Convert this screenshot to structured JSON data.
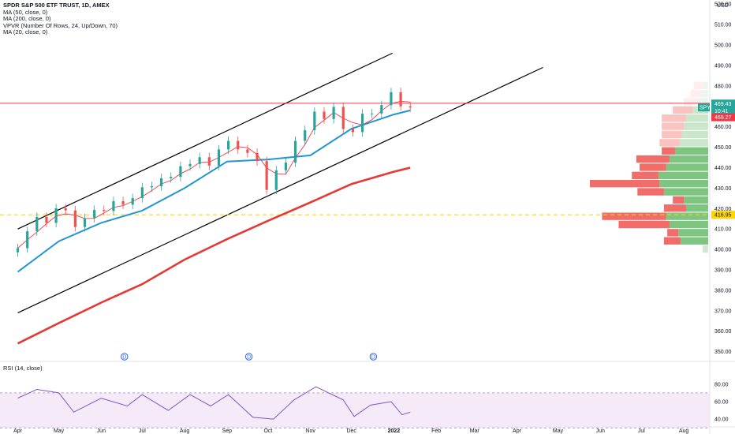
{
  "legend": {
    "title": "SPDR S&P 500 ETF TRUST, 1D, AMEX",
    "lines": [
      "MA (50, close, 0)",
      "MA (200, close, 0)",
      "VPVR (Number Of Rows, 24, Up/Down, 70)",
      "MA (20, close, 0)"
    ]
  },
  "rsi_legend": "RSI (14, close)",
  "currency": "USD",
  "colors": {
    "ma20": "#f23645",
    "ma50": "#2196d3",
    "ma200": "#e53935",
    "rsi": "#7e57c2",
    "up": "#26a69a",
    "down": "#ef5350",
    "channel": "#000000",
    "hline": "#f23645",
    "dashed": "#ffd600"
  },
  "chart_data": [
    {
      "type": "candlestick",
      "title": "SPDR S&P 500 ETF TRUST, 1D, AMEX",
      "ylabel": "USD",
      "ylim": [
        346,
        522
      ],
      "y_ticks": [
        350,
        360,
        370,
        380,
        390,
        400,
        410,
        420,
        430,
        440,
        450,
        460,
        470,
        480,
        490,
        500,
        510,
        520
      ],
      "x_ticks": [
        "Apr",
        "May",
        "Jun",
        "Jul",
        "Aug",
        "Sep",
        "Oct",
        "Nov",
        "Dec",
        "2022",
        "Feb",
        "Mar",
        "Apr",
        "May",
        "Jun",
        "Jul",
        "Aug"
      ],
      "close_series": [
        {
          "x": "2021-04-01",
          "y": 400.6
        },
        {
          "x": "2021-04-08",
          "y": 408.9
        },
        {
          "x": "2021-04-15",
          "y": 415.9
        },
        {
          "x": "2021-04-22",
          "y": 413.0
        },
        {
          "x": "2021-04-29",
          "y": 420.1
        },
        {
          "x": "2021-05-06",
          "y": 419.1
        },
        {
          "x": "2021-05-13",
          "y": 411.0
        },
        {
          "x": "2021-05-20",
          "y": 415.3
        },
        {
          "x": "2021-05-27",
          "y": 419.3
        },
        {
          "x": "2021-06-03",
          "y": 418.8
        },
        {
          "x": "2021-06-10",
          "y": 423.6
        },
        {
          "x": "2021-06-17",
          "y": 421.9
        },
        {
          "x": "2021-06-24",
          "y": 425.1
        },
        {
          "x": "2021-07-01",
          "y": 430.4
        },
        {
          "x": "2021-07-08",
          "y": 430.9
        },
        {
          "x": "2021-07-15",
          "y": 434.8
        },
        {
          "x": "2021-07-22",
          "y": 435.5
        },
        {
          "x": "2021-07-29",
          "y": 440.7
        },
        {
          "x": "2021-08-05",
          "y": 441.8
        },
        {
          "x": "2021-08-12",
          "y": 445.1
        },
        {
          "x": "2021-08-19",
          "y": 441.0
        },
        {
          "x": "2021-08-26",
          "y": 448.9
        },
        {
          "x": "2021-09-02",
          "y": 453.1
        },
        {
          "x": "2021-09-09",
          "y": 448.9
        },
        {
          "x": "2021-09-16",
          "y": 447.2
        },
        {
          "x": "2021-09-23",
          "y": 443.2
        },
        {
          "x": "2021-09-30",
          "y": 429.1
        },
        {
          "x": "2021-10-07",
          "y": 438.7
        },
        {
          "x": "2021-10-14",
          "y": 442.5
        },
        {
          "x": "2021-10-21",
          "y": 453.1
        },
        {
          "x": "2021-10-28",
          "y": 458.3
        },
        {
          "x": "2021-11-04",
          "y": 467.4
        },
        {
          "x": "2021-11-11",
          "y": 463.8
        },
        {
          "x": "2021-11-18",
          "y": 469.7
        },
        {
          "x": "2021-11-25",
          "y": 458.9
        },
        {
          "x": "2021-12-02",
          "y": 457.4
        },
        {
          "x": "2021-12-09",
          "y": 466.4
        },
        {
          "x": "2021-12-16",
          "y": 466.5
        },
        {
          "x": "2021-12-23",
          "y": 470.6
        },
        {
          "x": "2021-12-30",
          "y": 476.9
        },
        {
          "x": "2022-01-06",
          "y": 470.0
        },
        {
          "x": "2022-01-13",
          "y": 469.4
        }
      ],
      "ma50": [
        {
          "x": "2021-04-01",
          "y": 389
        },
        {
          "x": "2021-05-01",
          "y": 404
        },
        {
          "x": "2021-06-01",
          "y": 413
        },
        {
          "x": "2021-07-01",
          "y": 419
        },
        {
          "x": "2021-08-01",
          "y": 430
        },
        {
          "x": "2021-09-01",
          "y": 443
        },
        {
          "x": "2021-10-01",
          "y": 444
        },
        {
          "x": "2021-11-01",
          "y": 446
        },
        {
          "x": "2021-12-01",
          "y": 459
        },
        {
          "x": "2022-01-01",
          "y": 466
        },
        {
          "x": "2022-01-13",
          "y": 468
        }
      ],
      "ma200": [
        {
          "x": "2021-04-01",
          "y": 354
        },
        {
          "x": "2021-05-01",
          "y": 364
        },
        {
          "x": "2021-06-01",
          "y": 374
        },
        {
          "x": "2021-07-01",
          "y": 383
        },
        {
          "x": "2021-08-01",
          "y": 395
        },
        {
          "x": "2021-09-01",
          "y": 405
        },
        {
          "x": "2021-10-01",
          "y": 414
        },
        {
          "x": "2021-11-01",
          "y": 423
        },
        {
          "x": "2021-12-01",
          "y": 432
        },
        {
          "x": "2022-01-01",
          "y": 438
        },
        {
          "x": "2022-01-13",
          "y": 440
        }
      ],
      "channel_upper": [
        {
          "x": "2021-04-01",
          "y": 410
        },
        {
          "x": "2021-12-31",
          "y": 496
        }
      ],
      "channel_lower": [
        {
          "x": "2021-04-01",
          "y": 369
        },
        {
          "x": "2022-04-20",
          "y": 489
        }
      ],
      "horizontal_line": 471.5,
      "dashed_line": 416.95,
      "price_labels": {
        "symbol": "SPY",
        "last": "469.43",
        "countdown": "10:41",
        "ma20": "469.27",
        "dashed": "416.95"
      },
      "dividend_markers": [
        {
          "x": "2021-06-18",
          "label": "D"
        },
        {
          "x": "2021-09-17",
          "label": "D"
        },
        {
          "x": "2021-12-17",
          "label": "D"
        }
      ],
      "volume_profile": {
        "rows": [
          {
            "price": 480,
            "up": 5,
            "down": 8
          },
          {
            "price": 476,
            "up": 6,
            "down": 10
          },
          {
            "price": 472,
            "up": 10,
            "down": 12
          },
          {
            "price": 468,
            "up": 14,
            "down": 18
          },
          {
            "price": 464,
            "up": 20,
            "down": 22
          },
          {
            "price": 460,
            "up": 22,
            "down": 20
          },
          {
            "price": 456,
            "up": 24,
            "down": 18
          },
          {
            "price": 452,
            "up": 26,
            "down": 18
          },
          {
            "price": 448,
            "up": 30,
            "down": 12
          },
          {
            "price": 444,
            "up": 35,
            "down": 30
          },
          {
            "price": 440,
            "up": 38,
            "down": 24
          },
          {
            "price": 436,
            "up": 45,
            "down": 24
          },
          {
            "price": 432,
            "up": 44,
            "down": 63
          },
          {
            "price": 428,
            "up": 40,
            "down": 24
          },
          {
            "price": 424,
            "up": 22,
            "down": 10
          },
          {
            "price": 420,
            "up": 20,
            "down": 20
          },
          {
            "price": 416,
            "up": 38,
            "down": 58
          },
          {
            "price": 412,
            "up": 35,
            "down": 46
          },
          {
            "price": 408,
            "up": 27,
            "down": 10
          },
          {
            "price": 404,
            "up": 25,
            "down": 15
          },
          {
            "price": 400,
            "up": 5,
            "down": 0
          }
        ]
      }
    },
    {
      "type": "line",
      "title": "RSI (14, close)",
      "ylim": [
        32,
        88
      ],
      "y_ticks": [
        40,
        60,
        80
      ],
      "band": [
        30,
        70
      ],
      "series": [
        {
          "values": [
            {
              "x": "2021-04-01",
              "y": 64
            },
            {
              "x": "2021-04-15",
              "y": 74
            },
            {
              "x": "2021-05-01",
              "y": 70
            },
            {
              "x": "2021-05-12",
              "y": 48
            },
            {
              "x": "2021-06-01",
              "y": 64
            },
            {
              "x": "2021-06-20",
              "y": 55
            },
            {
              "x": "2021-07-01",
              "y": 68
            },
            {
              "x": "2021-07-20",
              "y": 50
            },
            {
              "x": "2021-08-05",
              "y": 68
            },
            {
              "x": "2021-08-20",
              "y": 55
            },
            {
              "x": "2021-09-02",
              "y": 68
            },
            {
              "x": "2021-09-20",
              "y": 42
            },
            {
              "x": "2021-10-05",
              "y": 40
            },
            {
              "x": "2021-10-20",
              "y": 62
            },
            {
              "x": "2021-11-05",
              "y": 77
            },
            {
              "x": "2021-11-25",
              "y": 62
            },
            {
              "x": "2021-12-03",
              "y": 43
            },
            {
              "x": "2021-12-15",
              "y": 56
            },
            {
              "x": "2021-12-30",
              "y": 60
            },
            {
              "x": "2022-01-07",
              "y": 45
            },
            {
              "x": "2022-01-13",
              "y": 48
            }
          ]
        }
      ]
    }
  ]
}
